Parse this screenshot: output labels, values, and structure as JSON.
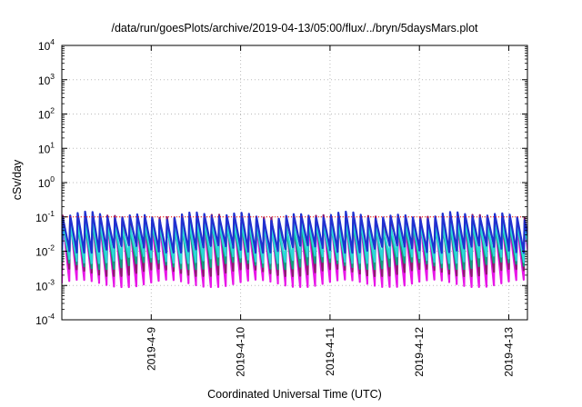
{
  "chart_data": {
    "type": "line",
    "title": "/data/run/goesPlots/archive/2019-04-13/05:00/flux/../bryn/5daysMars.plot",
    "xlabel": "Coordinated Universal Time (UTC)",
    "ylabel": "cSv/day",
    "y_scale": "log",
    "ylim": [
      0.0001,
      10000
    ],
    "xlim": [
      "2019-04-08 00:00",
      "2019-04-13 05:00"
    ],
    "y_ticks": [
      {
        "base": "10",
        "exp": "4",
        "value": 10000
      },
      {
        "base": "10",
        "exp": "3",
        "value": 1000
      },
      {
        "base": "10",
        "exp": "2",
        "value": 100
      },
      {
        "base": "10",
        "exp": "1",
        "value": 10
      },
      {
        "base": "10",
        "exp": "0",
        "value": 1
      },
      {
        "base": "10",
        "exp": "-1",
        "value": 0.1
      },
      {
        "base": "10",
        "exp": "-2",
        "value": 0.01
      },
      {
        "base": "10",
        "exp": "-3",
        "value": 0.001
      },
      {
        "base": "10",
        "exp": "-4",
        "value": 0.0001
      }
    ],
    "x_ticks": [
      {
        "label": "2019-4-9",
        "time": "2019-04-09 00:00"
      },
      {
        "label": "2019-4-10",
        "time": "2019-04-10 00:00"
      },
      {
        "label": "2019-4-11",
        "time": "2019-04-11 00:00"
      },
      {
        "label": "2019-4-12",
        "time": "2019-04-12 00:00"
      },
      {
        "label": "2019-4-13",
        "time": "2019-04-13 00:00"
      }
    ],
    "grid": true,
    "reference_line": {
      "value": 0.1,
      "color": "#ff0000",
      "style": "dotted"
    },
    "cycle_hours": 2,
    "series": [
      {
        "color": "#e816e8",
        "peak": 0.075,
        "trough": 0.0012
      },
      {
        "color": "#8b1d6e",
        "peak": 0.09,
        "trough": 0.0025
      },
      {
        "color": "#10a080",
        "peak": 0.06,
        "trough": 0.004
      },
      {
        "color": "#2ad8d8",
        "peak": 0.065,
        "trough": 0.006
      },
      {
        "color": "#2030d0",
        "peak": 0.11,
        "trough": 0.012
      }
    ],
    "colors": {
      "axis": "#000000",
      "grid": "#bbbbbb"
    }
  }
}
